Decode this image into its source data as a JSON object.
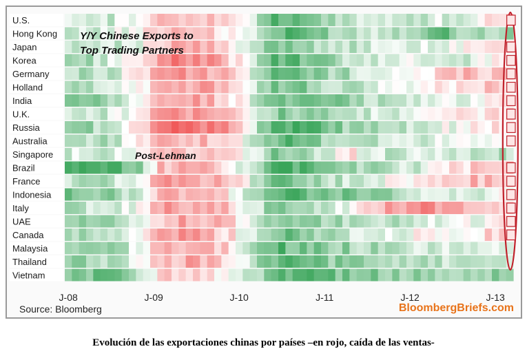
{
  "chart_data": {
    "type": "heatmap",
    "title_lines": [
      "Y/Y Chinese Exports to",
      "Top Trading Partners"
    ],
    "annotation": "Post-Lehman",
    "source": "Source: Bloomberg",
    "brand": "BloombergBriefs.com",
    "colors": {
      "positive": "#3aa55a",
      "negative": "#f05a5a",
      "neutral": "#ffffff",
      "highlight": "#c0202a"
    },
    "rows": [
      "U.S.",
      "Hong Kong",
      "Japan",
      "Korea",
      "Germany",
      "Holland",
      "India",
      "U.K.",
      "Russia",
      "Australia",
      "Singapore",
      "Brazil",
      "France",
      "Indonesia",
      "Italy",
      "UAE",
      "Canada",
      "Malaysia",
      "Thailand",
      "Vietnam"
    ],
    "x_ticks": [
      "J-08",
      "J-09",
      "J-10",
      "J-11",
      "J-12",
      "J-13"
    ],
    "x_start": "Jan 2008",
    "x_end": "Mar 2013",
    "highlighted_period": "J-13",
    "highlight_negative_rows": [
      "U.S.",
      "Japan",
      "Korea",
      "Germany",
      "Holland",
      "India",
      "U.K.",
      "Russia",
      "Australia",
      "Brazil",
      "France",
      "Indonesia",
      "Italy",
      "UAE",
      "Canada"
    ],
    "phase_values": [
      [
        0.3,
        0.4,
        0.2,
        -0.1,
        -0.4,
        -0.5,
        -0.4,
        -0.2,
        0.2,
        0.8,
        0.7,
        0.5,
        0.3,
        0.2,
        0.2,
        0.4,
        0.2,
        0.2,
        -0.1,
        -0.1
      ],
      [
        0.2,
        0.3,
        0.1,
        0.0,
        -0.3,
        -0.4,
        -0.3,
        -0.1,
        0.2,
        0.7,
        0.8,
        0.6,
        0.4,
        0.3,
        0.4,
        0.6,
        0.8,
        0.5,
        0.4,
        0.5
      ],
      [
        0.4,
        0.3,
        0.3,
        0.1,
        -0.4,
        -0.6,
        -0.5,
        -0.2,
        0.3,
        0.7,
        0.6,
        0.4,
        0.3,
        0.2,
        0.2,
        0.1,
        0.1,
        0.0,
        -0.2,
        -0.3
      ],
      [
        0.5,
        0.4,
        0.2,
        -0.2,
        -0.7,
        -0.8,
        -0.6,
        -0.3,
        0.3,
        0.8,
        0.7,
        0.5,
        0.3,
        0.2,
        0.1,
        0.2,
        0.3,
        0.2,
        0.1,
        -0.1
      ],
      [
        0.3,
        0.4,
        0.3,
        -0.1,
        -0.6,
        -0.7,
        -0.5,
        -0.3,
        0.2,
        0.8,
        0.7,
        0.5,
        0.4,
        0.2,
        0.1,
        -0.1,
        -0.2,
        -0.4,
        -0.3,
        -0.3
      ],
      [
        0.4,
        0.3,
        0.3,
        0.0,
        -0.5,
        -0.6,
        -0.5,
        -0.2,
        0.3,
        0.7,
        0.6,
        0.4,
        0.3,
        0.2,
        0.1,
        0.0,
        -0.1,
        -0.2,
        -0.3,
        -0.2
      ],
      [
        0.6,
        0.5,
        0.4,
        0.0,
        -0.4,
        -0.6,
        -0.5,
        -0.2,
        0.3,
        0.8,
        0.7,
        0.6,
        0.5,
        0.4,
        0.3,
        0.2,
        0.2,
        0.1,
        -0.1,
        -0.2
      ],
      [
        0.3,
        0.3,
        0.2,
        -0.1,
        -0.5,
        -0.6,
        -0.5,
        -0.3,
        0.2,
        0.6,
        0.5,
        0.4,
        0.3,
        0.2,
        0.2,
        0.1,
        0.0,
        -0.1,
        -0.2,
        -0.2
      ],
      [
        0.6,
        0.5,
        0.2,
        -0.3,
        -0.8,
        -0.8,
        -0.8,
        -0.6,
        0.3,
        0.9,
        0.9,
        0.7,
        0.5,
        0.4,
        0.3,
        0.2,
        0.1,
        0.0,
        -0.1,
        -0.2
      ],
      [
        0.4,
        0.4,
        0.3,
        0.0,
        -0.4,
        -0.5,
        -0.4,
        -0.2,
        0.3,
        0.8,
        0.7,
        0.5,
        0.4,
        0.3,
        0.3,
        0.2,
        0.1,
        0.1,
        0.0,
        -0.1
      ],
      [
        0.2,
        0.3,
        0.2,
        0.0,
        -0.3,
        -0.4,
        -0.3,
        -0.1,
        0.2,
        0.6,
        0.5,
        0.3,
        -0.3,
        0.2,
        0.3,
        0.2,
        0.1,
        0.2,
        0.3,
        0.4
      ],
      [
        0.8,
        0.8,
        0.8,
        0.6,
        -0.4,
        -0.5,
        -0.4,
        -0.2,
        0.5,
        0.9,
        0.9,
        0.7,
        0.5,
        0.4,
        0.3,
        0.2,
        0.0,
        -0.2,
        -0.3,
        -0.4
      ],
      [
        0.3,
        0.4,
        0.3,
        0.0,
        -0.5,
        -0.6,
        -0.5,
        -0.3,
        0.2,
        0.7,
        0.6,
        0.4,
        0.3,
        0.1,
        0.0,
        -0.2,
        -0.3,
        -0.4,
        -0.4,
        -0.3
      ],
      [
        0.6,
        0.7,
        0.5,
        0.2,
        -0.4,
        -0.5,
        -0.4,
        -0.1,
        0.4,
        0.8,
        0.8,
        0.7,
        0.6,
        0.5,
        0.4,
        0.3,
        0.3,
        0.2,
        0.1,
        0.0
      ],
      [
        0.4,
        0.3,
        0.2,
        0.0,
        -0.5,
        -0.6,
        -0.5,
        -0.3,
        0.2,
        0.7,
        0.6,
        0.3,
        0.1,
        -0.3,
        -0.6,
        -0.7,
        -0.6,
        -0.5,
        -0.4,
        -0.3
      ],
      [
        0.5,
        0.6,
        0.4,
        0.1,
        -0.4,
        -0.6,
        -0.5,
        -0.3,
        0.2,
        0.7,
        0.6,
        0.5,
        0.4,
        0.3,
        0.3,
        0.2,
        0.1,
        0.1,
        0.0,
        -0.1
      ],
      [
        0.3,
        0.4,
        0.3,
        0.0,
        -0.5,
        -0.6,
        -0.5,
        -0.2,
        0.3,
        0.7,
        0.6,
        0.4,
        0.3,
        0.2,
        0.1,
        0.0,
        0.0,
        -0.1,
        -0.2,
        -0.3
      ],
      [
        0.5,
        0.6,
        0.4,
        0.1,
        -0.4,
        -0.5,
        -0.4,
        -0.2,
        0.3,
        0.8,
        0.7,
        0.6,
        0.5,
        0.4,
        0.3,
        0.2,
        0.2,
        0.2,
        0.2,
        0.3
      ],
      [
        0.4,
        0.5,
        0.4,
        0.1,
        -0.4,
        -0.5,
        -0.4,
        -0.2,
        0.3,
        0.8,
        0.7,
        0.6,
        0.5,
        0.4,
        0.3,
        0.3,
        0.3,
        0.4,
        0.4,
        0.3
      ],
      [
        0.6,
        0.7,
        0.6,
        0.3,
        -0.2,
        -0.3,
        -0.2,
        0.1,
        0.4,
        0.8,
        0.8,
        0.7,
        0.6,
        0.6,
        0.5,
        0.5,
        0.4,
        0.4,
        0.5,
        0.6
      ]
    ]
  },
  "caption": "Evolución de las exportaciones chinas por países –en rojo, caída de las ventas-"
}
